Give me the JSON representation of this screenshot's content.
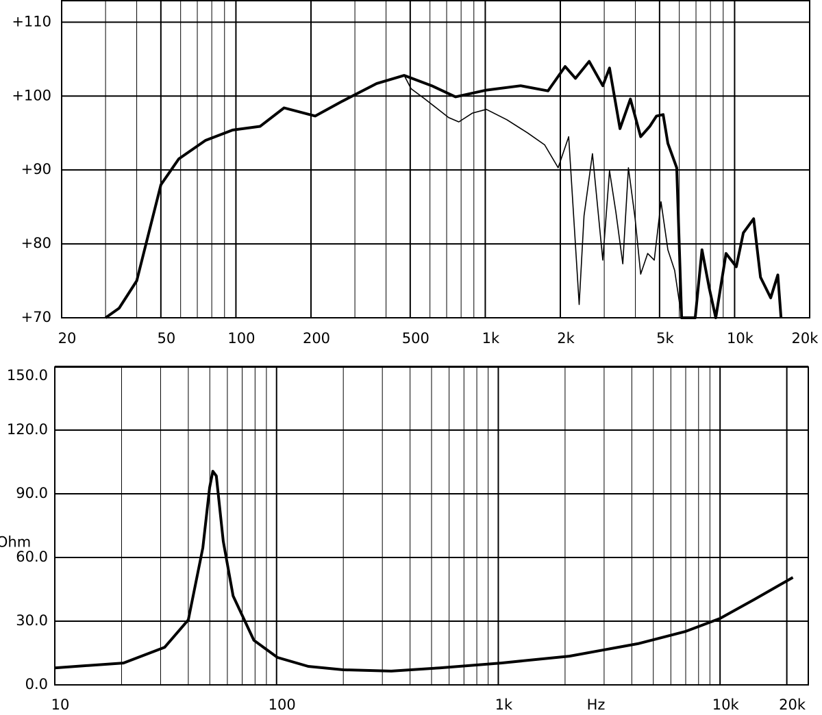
{
  "chart_data": [
    {
      "type": "line",
      "log_x": true,
      "grid": true,
      "xlim": [
        20,
        20000
      ],
      "ylim": [
        70,
        113
      ],
      "xticks": [
        20,
        50,
        100,
        200,
        500,
        {
          "value": 1000,
          "label": "1k"
        },
        {
          "value": 2000,
          "label": "2k"
        },
        {
          "value": 5000,
          "label": "5k"
        },
        {
          "value": 10000,
          "label": "10k"
        },
        {
          "value": 20000,
          "label": "20k"
        }
      ],
      "yticks": [
        {
          "value": 70,
          "label": "+70"
        },
        {
          "value": 80,
          "label": "+80"
        },
        {
          "value": 90,
          "label": "+90"
        },
        {
          "value": 100,
          "label": "+100"
        },
        {
          "value": 110,
          "label": "+110"
        }
      ],
      "series": [
        {
          "color": "#000000",
          "width": 4,
          "x": [
            30,
            34,
            40,
            50,
            59,
            75.5,
            97,
            125,
            156,
            208,
            267,
            367,
            473,
            610,
            760,
            1010,
            1387,
            1785,
            2090,
            2300,
            2610,
            2960,
            3150,
            3470,
            3820,
            4200,
            4570,
            4860,
            5170,
            5400,
            5860,
            6130,
            6950,
            7400,
            7900,
            8400,
            9240,
            10160,
            10840,
            11920,
            12700,
            13950,
            14900,
            15350
          ],
          "values": [
            70,
            71.3,
            75,
            88,
            91.5,
            94,
            95.4,
            95.9,
            98.4,
            97.3,
            99.3,
            101.7,
            102.8,
            101.4,
            99.9,
            100.8,
            101.4,
            100.7,
            104,
            102.4,
            104.7,
            101.4,
            103.8,
            95.6,
            99.6,
            94.5,
            95.9,
            97.3,
            97.5,
            93.6,
            90.3,
            70,
            70,
            79.2,
            74.1,
            70,
            78.7,
            76.9,
            81.5,
            83.4,
            75.5,
            72.7,
            75.8,
            70
          ]
        },
        {
          "color": "#000000",
          "width": 1.6,
          "x": [
            30,
            34,
            40,
            50,
            59,
            75.5,
            97,
            125,
            156,
            208,
            267,
            367,
            473,
            504,
            573,
            713,
            783,
            889,
            1010,
            1220,
            1480,
            1730,
            1960,
            2160,
            2380,
            2490,
            2690,
            2960,
            3150,
            3340,
            3560,
            3750,
            3990,
            4200,
            4480,
            4760,
            5070,
            5400,
            5750,
            6130
          ],
          "values": [
            70,
            71.3,
            75,
            88,
            91.5,
            94,
            95.4,
            95.9,
            98.4,
            97.3,
            99.3,
            101.7,
            102.8,
            101,
            99.6,
            97.1,
            96.5,
            97.7,
            98.2,
            96.8,
            95,
            93.4,
            90.3,
            94.5,
            71.8,
            83.8,
            92.2,
            77.8,
            89.9,
            84.3,
            77.3,
            90.3,
            83.4,
            75.9,
            78.7,
            77.8,
            85.7,
            79.2,
            76.4,
            70
          ]
        }
      ]
    },
    {
      "type": "line",
      "log_x": true,
      "grid": true,
      "x_label": "Hz",
      "y_label": "Ohm",
      "xlim": [
        10,
        25000
      ],
      "ylim": [
        0,
        150
      ],
      "xticks": [
        10,
        100,
        {
          "value": 1000,
          "label": "1k"
        },
        {
          "value": 10000,
          "label": "10k"
        },
        {
          "value": 20000,
          "label": "20k"
        }
      ],
      "yticks": [
        {
          "value": 0,
          "label": "0.0"
        },
        {
          "value": 30,
          "label": "30.0"
        },
        {
          "value": 60,
          "label": "60.0"
        },
        {
          "value": 90,
          "label": "90.0"
        },
        {
          "value": 120,
          "label": "120.0"
        },
        {
          "value": 150,
          "label": "150.0"
        }
      ],
      "series": [
        {
          "color": "#000000",
          "width": 4,
          "x": [
            10,
            20.4,
            31.3,
            40,
            46.5,
            49.9,
            51.6,
            53.5,
            57.5,
            63.7,
            79,
            101,
            139,
            200,
            329,
            544,
            1030,
            2090,
            4260,
            7000,
            10000,
            14300,
            21300
          ],
          "values": [
            8,
            10.3,
            17.7,
            30.6,
            64.5,
            92.9,
            100.6,
            98.4,
            67.7,
            41.9,
            21,
            12.9,
            8.7,
            7.1,
            6.5,
            8,
            10.3,
            13.5,
            19.4,
            25.2,
            31.3,
            40.3,
            50.6
          ]
        }
      ]
    }
  ]
}
